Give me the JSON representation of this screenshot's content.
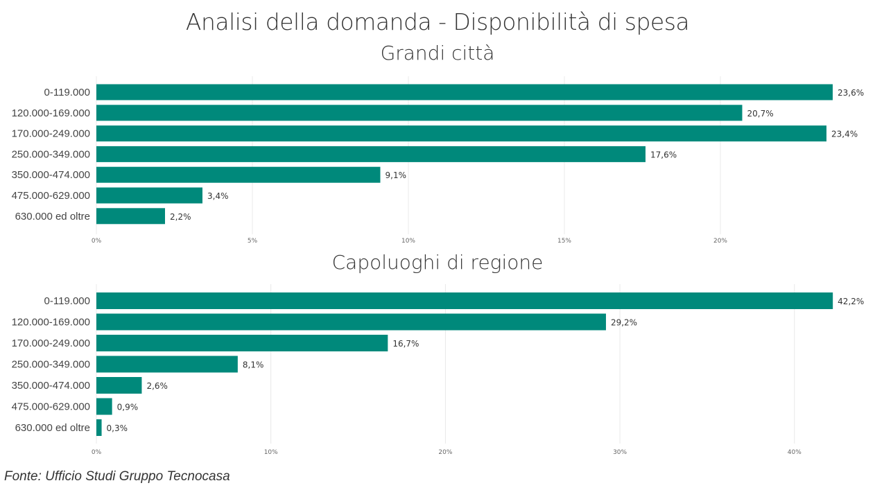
{
  "title": "Analisi della domanda - Disponibilità di spesa",
  "source": "Fonte: Ufficio Studi Gruppo Tecnocasa",
  "bar_color": "#00897b",
  "chart_data": [
    {
      "type": "bar",
      "orientation": "horizontal",
      "title": "Grandi città",
      "categories": [
        "0-119.000",
        "120.000-169.000",
        "170.000-249.000",
        "250.000-349.000",
        "350.000-474.000",
        "475.000-629.000",
        "630.000 ed oltre"
      ],
      "values": [
        23.6,
        20.7,
        23.4,
        17.6,
        9.1,
        3.4,
        2.2
      ],
      "value_labels": [
        "23,6%",
        "20,7%",
        "23,4%",
        "17,6%",
        "9,1%",
        "3,4%",
        "2,2%"
      ],
      "xticks": [
        0,
        5,
        10,
        15,
        20
      ],
      "xtick_labels": [
        "0%",
        "5%",
        "10%",
        "15%",
        "20%"
      ],
      "xlim": [
        0,
        23.6
      ],
      "grid": true
    },
    {
      "type": "bar",
      "orientation": "horizontal",
      "title": "Capoluoghi di regione",
      "categories": [
        "0-119.000",
        "120.000-169.000",
        "170.000-249.000",
        "250.000-349.000",
        "350.000-474.000",
        "475.000-629.000",
        "630.000 ed oltre"
      ],
      "values": [
        42.2,
        29.2,
        16.7,
        8.1,
        2.6,
        0.9,
        0.3
      ],
      "value_labels": [
        "42,2%",
        "29,2%",
        "16,7%",
        "8,1%",
        "2,6%",
        "0,9%",
        "0,3%"
      ],
      "xticks": [
        0,
        10,
        20,
        30,
        40
      ],
      "xtick_labels": [
        "0%",
        "10%",
        "20%",
        "30%",
        "40%"
      ],
      "xlim": [
        0,
        42.2
      ],
      "grid": true
    }
  ]
}
